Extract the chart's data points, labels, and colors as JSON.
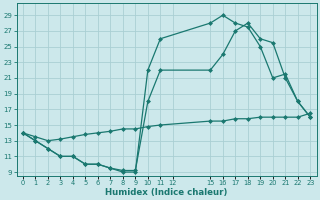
{
  "xlabel": "Humidex (Indice chaleur)",
  "bg_color": "#cce8eb",
  "grid_color": "#aacfd4",
  "line_color": "#1a7870",
  "line1_x": [
    0,
    1,
    2,
    3,
    4,
    5,
    6,
    7,
    8,
    9,
    10,
    11,
    15,
    16,
    17,
    18,
    19,
    20,
    21,
    22,
    23
  ],
  "line1_y": [
    14,
    13,
    12,
    11,
    11,
    10,
    10,
    9.5,
    9,
    9,
    22,
    26,
    28,
    29,
    28,
    27.5,
    25,
    21,
    21.5,
    18,
    16
  ],
  "line2_x": [
    0,
    1,
    2,
    3,
    4,
    5,
    6,
    7,
    8,
    9,
    10,
    11,
    15,
    16,
    17,
    18,
    19,
    20,
    21,
    22,
    23
  ],
  "line2_y": [
    14,
    13,
    12,
    11,
    11,
    10,
    10,
    9.5,
    9.2,
    9.2,
    18,
    22,
    22,
    24,
    27,
    28,
    26,
    25.5,
    21,
    18,
    16
  ],
  "line3_x": [
    0,
    1,
    2,
    3,
    4,
    5,
    6,
    7,
    8,
    9,
    10,
    11,
    15,
    16,
    17,
    18,
    19,
    20,
    21,
    22,
    23
  ],
  "line3_y": [
    14,
    13.5,
    13,
    13.2,
    13.5,
    13.8,
    14,
    14.2,
    14.5,
    14.5,
    14.8,
    15,
    15.5,
    15.5,
    15.8,
    15.8,
    16,
    16,
    16,
    16,
    16.5
  ],
  "xlim": [
    -0.5,
    23.5
  ],
  "ylim": [
    8.5,
    30.5
  ],
  "yticks": [
    9,
    11,
    13,
    15,
    17,
    19,
    21,
    23,
    25,
    27,
    29
  ],
  "xtick_labels": [
    "0",
    "1",
    "2",
    "3",
    "4",
    "5",
    "6",
    "7",
    "8",
    "9",
    "10",
    "11",
    "12",
    "15",
    "16",
    "17",
    "18",
    "19",
    "20",
    "21",
    "22",
    "23"
  ],
  "xtick_positions": [
    0,
    1,
    2,
    3,
    4,
    5,
    6,
    7,
    8,
    9,
    10,
    11,
    12,
    15,
    16,
    17,
    18,
    19,
    20,
    21,
    22,
    23
  ]
}
